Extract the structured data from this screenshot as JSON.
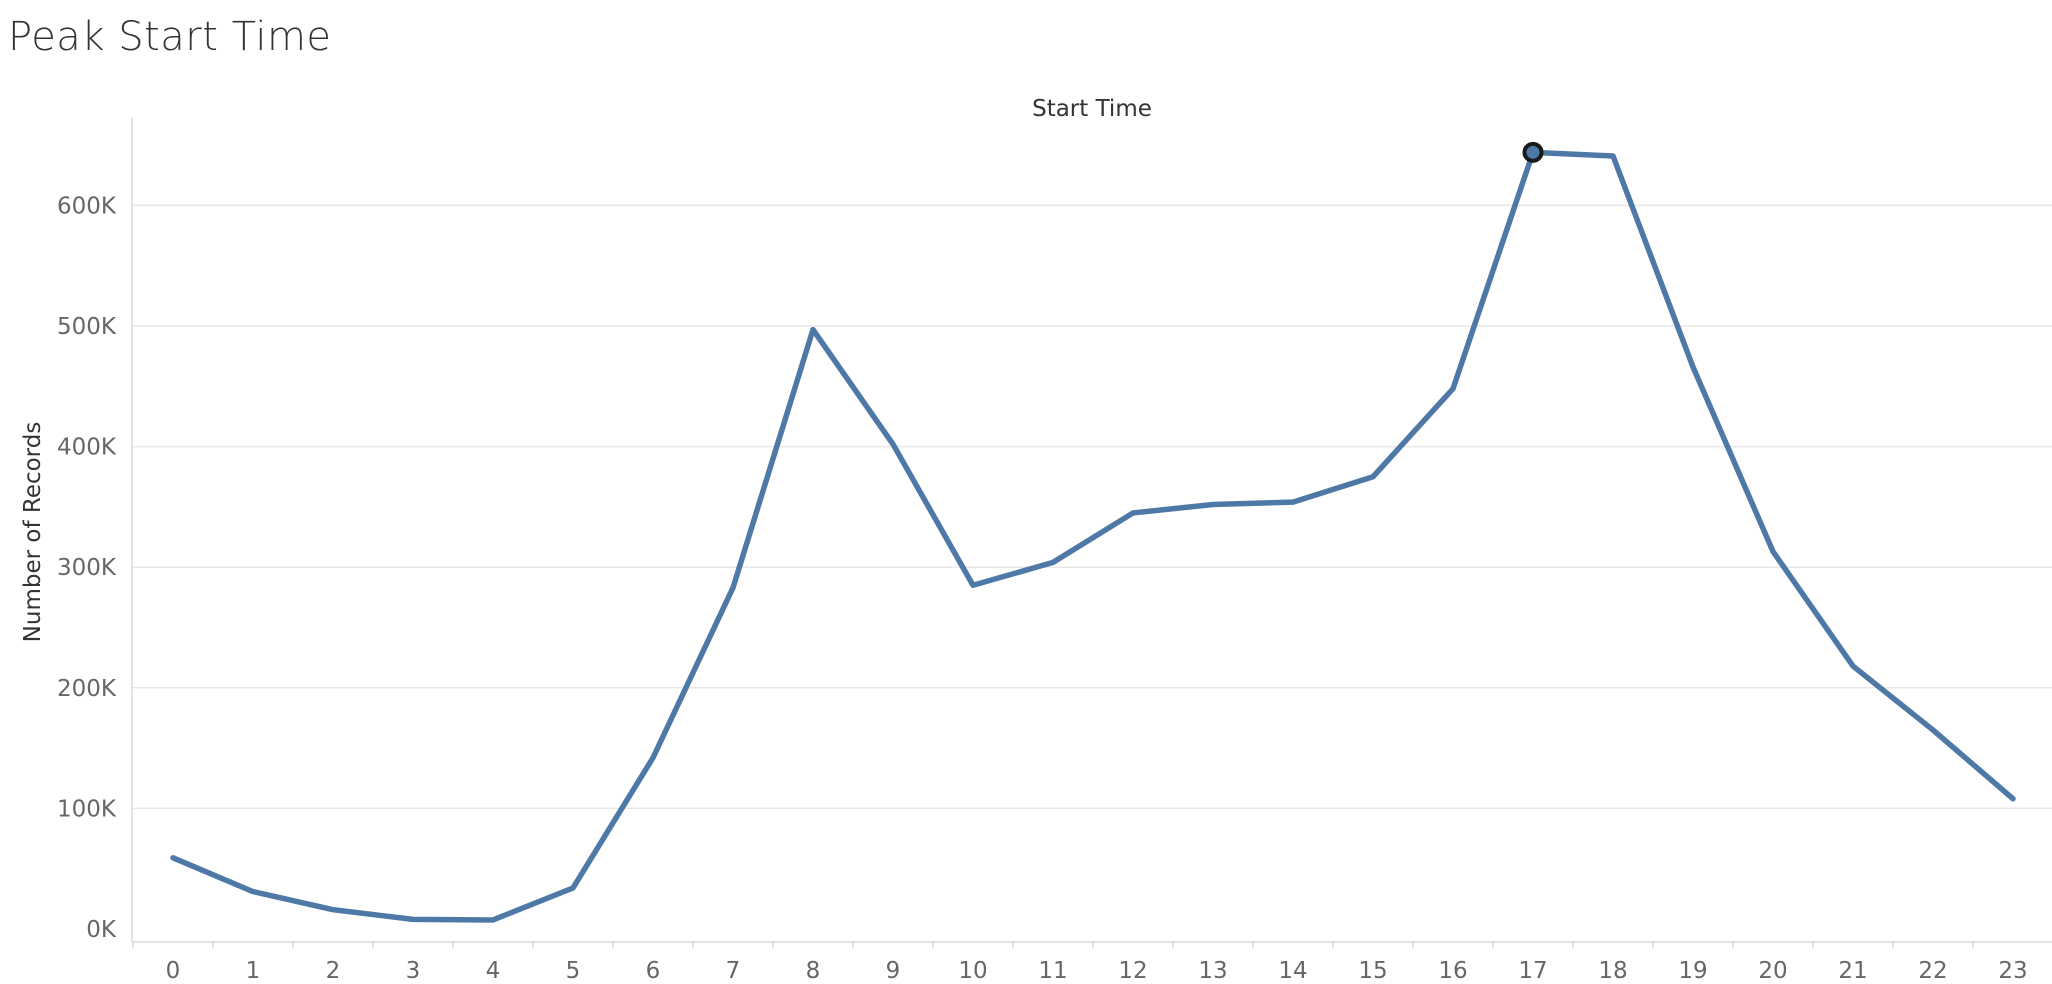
{
  "page": {
    "title": "Peak Start Time"
  },
  "chart_data": {
    "type": "line",
    "title": "Start Time",
    "xlabel": "",
    "ylabel": "Number of Records",
    "x": [
      0,
      1,
      2,
      3,
      4,
      5,
      6,
      7,
      8,
      9,
      10,
      11,
      12,
      13,
      14,
      15,
      16,
      17,
      18,
      19,
      20,
      21,
      22,
      23
    ],
    "series": [
      {
        "values": [
          59000,
          31000,
          16000,
          8000,
          7500,
          34000,
          142000,
          283000,
          497000,
          402000,
          285000,
          304000,
          345000,
          352000,
          354000,
          375000,
          448000,
          644000,
          641000,
          466000,
          313000,
          218000,
          165000,
          108000
        ]
      }
    ],
    "ylim": [
      0,
      680000
    ],
    "yticks": [
      0,
      100000,
      200000,
      300000,
      400000,
      500000,
      600000
    ],
    "ytick_labels": [
      "0K",
      "100K",
      "200K",
      "300K",
      "400K",
      "500K",
      "600K"
    ],
    "xtick_labels": [
      "0",
      "1",
      "2",
      "3",
      "4",
      "5",
      "6",
      "7",
      "8",
      "9",
      "10",
      "11",
      "12",
      "13",
      "14",
      "15",
      "16",
      "17",
      "18",
      "19",
      "20",
      "21",
      "22",
      "23"
    ],
    "grid": true,
    "highlighted_point_index": 17,
    "colors": {
      "line": "#4e79a7",
      "highlight_stroke": "#1a1a1a",
      "grid": "#e8e8e8",
      "axis": "#d9d9d9"
    }
  }
}
